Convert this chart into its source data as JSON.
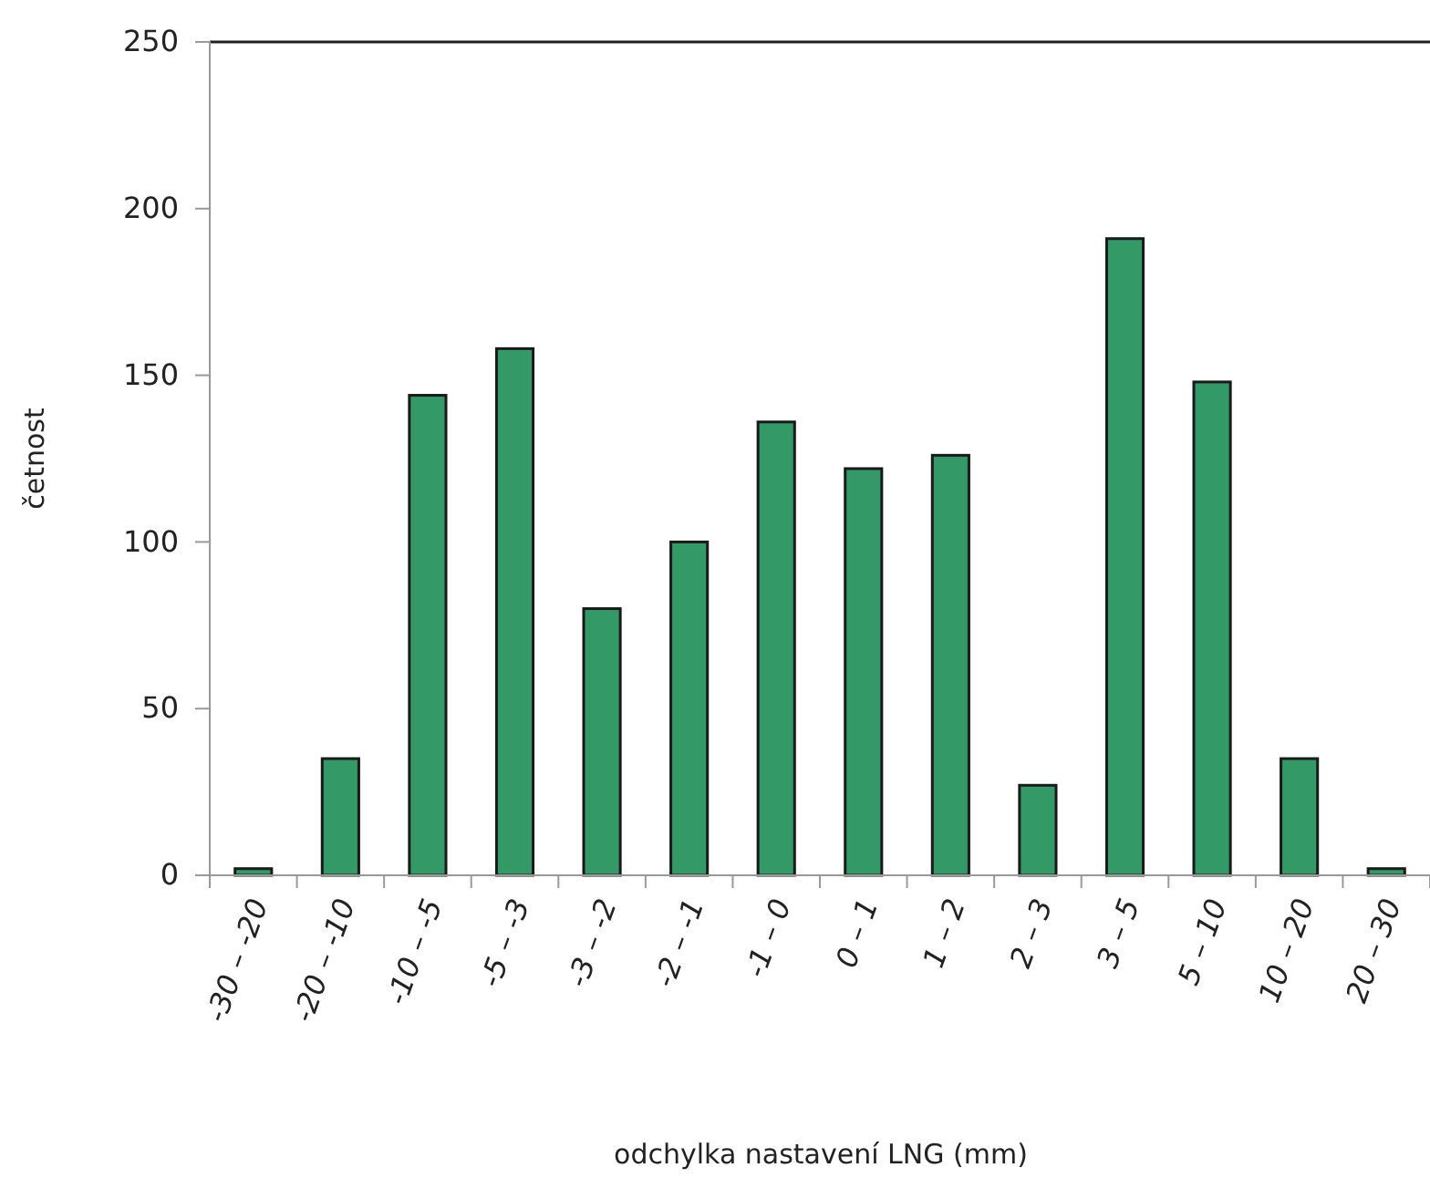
{
  "chart_data": {
    "type": "bar",
    "xlabel": "odchylka nastavení LNG (mm)",
    "ylabel": "četnost",
    "categories": [
      "-30 – -20",
      "-20 – -10",
      "-10 – -5",
      "-5 – -3",
      "-3 – -2",
      "-2 – -1",
      "-1 – 0",
      "0 – 1",
      "1 – 2",
      "2 – 3",
      "3 – 5",
      "5 – 10",
      "10 – 20",
      "20 – 30"
    ],
    "values": [
      2,
      35,
      144,
      158,
      80,
      100,
      136,
      122,
      126,
      27,
      191,
      148,
      35,
      2
    ],
    "color": "#339966",
    "ylim": [
      0,
      250
    ],
    "yticks": [
      0,
      50,
      100,
      150,
      200,
      250
    ],
    "grid": false
  }
}
